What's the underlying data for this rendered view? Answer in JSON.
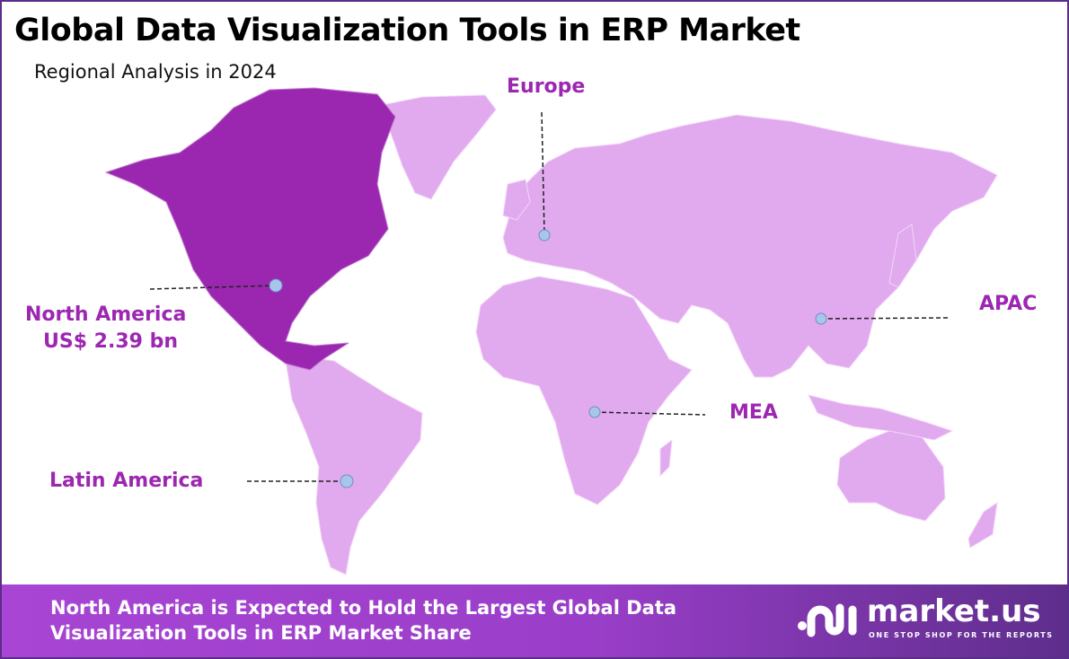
{
  "header": {
    "title": "Global Data Visualization Tools in ERP Market",
    "subtitle": "Regional Analysis in 2024"
  },
  "colors": {
    "highlight_region": "#9b27b0",
    "other_regions": "#e1a9ee",
    "label": "#9c27b0",
    "marker": "#a8c6ec",
    "border": "#5b2d8a"
  },
  "regions": [
    {
      "name": "North America",
      "value": "US$ 2.39 bn",
      "highlighted": true
    },
    {
      "name": "Europe"
    },
    {
      "name": "APAC"
    },
    {
      "name": "MEA"
    },
    {
      "name": "Latin America"
    }
  ],
  "footer": {
    "line1": "North America is Expected to Hold the Largest Global Data",
    "line2": "Visualization Tools in ERP Market Share"
  },
  "logo": {
    "name": "market.us",
    "tagline": "ONE STOP SHOP FOR THE REPORTS"
  }
}
